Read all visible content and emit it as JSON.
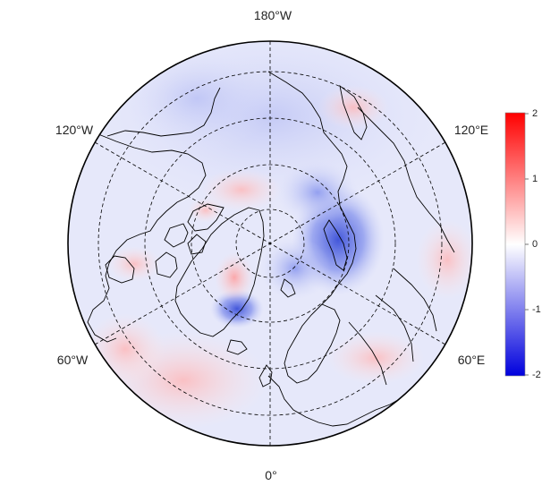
{
  "map": {
    "projection": "north-polar-stereographic",
    "longitude_labels": {
      "top": "180°W",
      "upper_left": "120°W",
      "upper_right": "120°E",
      "lower_left": "60°W",
      "lower_right": "60°E",
      "bottom": "0°"
    },
    "meridian_spacing_deg": 60,
    "parallel_circles": 4
  },
  "colorbar": {
    "min": -2,
    "max": 2,
    "ticks": [
      "2",
      "1",
      "0",
      "-1",
      "-2"
    ],
    "colors": {
      "high": "#ff0000",
      "mid": "#ffffff",
      "low": "#0000dd"
    }
  },
  "colors": {
    "coastline": "#000000",
    "grid": "#000000",
    "background": "#ffffff"
  }
}
